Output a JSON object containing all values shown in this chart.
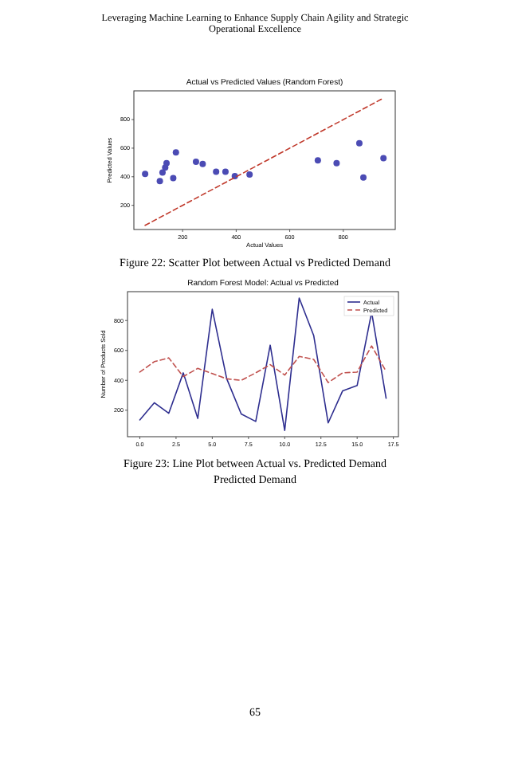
{
  "chart_data": [
    {
      "type": "scatter",
      "title": "Actual vs Predicted Values (Random Forest)",
      "xlabel": "Actual Values",
      "ylabel": "Predicted Values",
      "xlim": [
        18,
        994
      ],
      "ylim": [
        31,
        1001
      ],
      "xticks": [
        200,
        400,
        600,
        800
      ],
      "yticks": [
        200,
        400,
        600,
        800
      ],
      "series": [
        {
          "color": "#4b4bb4",
          "marker": "circle",
          "x": [
            60,
            115,
            125,
            135,
            140,
            175,
            165,
            250,
            275,
            325,
            360,
            395,
            450,
            705,
            775,
            860,
            875,
            950
          ],
          "values": [
            420,
            370,
            430,
            465,
            495,
            570,
            390,
            505,
            490,
            435,
            435,
            405,
            415,
            515,
            495,
            635,
            395,
            530
          ]
        },
        {
          "type": "line",
          "color": "#c0392b",
          "line_style": "dashed",
          "x": [
            60,
            950
          ],
          "values": [
            60,
            950
          ]
        }
      ],
      "annotations": [
        "Leveraging Machine Learning to Enhance Supply Chain Agility and Strategic Operational Excellence",
        "Figure 22: Scatter Plot between Actual vs Predicted Demand"
      ]
    },
    {
      "type": "line",
      "title": "Random Forest Model: Actual vs Predicted",
      "ylabel": "Number of Products Sold",
      "xlim": [
        -0.85,
        17.85
      ],
      "ylim": [
        23,
        993
      ],
      "xticks": [
        {
          "value": 0,
          "label": "0.0"
        },
        {
          "value": 2.5,
          "label": "2.5"
        },
        {
          "value": 5,
          "label": "5.0"
        },
        {
          "value": 7.5,
          "label": "7.5"
        },
        {
          "value": 10,
          "label": "10.0"
        },
        {
          "value": 12.5,
          "label": "12.5"
        },
        {
          "value": 15,
          "label": "15.0"
        },
        {
          "value": 17.5,
          "label": "17.5"
        }
      ],
      "yticks": [
        200,
        400,
        600,
        800
      ],
      "legend": "top right",
      "x": [
        0,
        1,
        2,
        3,
        4,
        5,
        6,
        7,
        8,
        9,
        10,
        11,
        12,
        13,
        14,
        15,
        16,
        17
      ],
      "series": [
        {
          "name": "Actual",
          "color": "#2e2e8f",
          "line_style": "solid",
          "values": [
            135,
            250,
            180,
            450,
            145,
            875,
            410,
            175,
            125,
            635,
            65,
            950,
            700,
            115,
            330,
            365,
            855,
            280
          ]
        },
        {
          "name": "Predicted",
          "color": "#c0504d",
          "line_style": "dashed",
          "values": [
            455,
            525,
            550,
            425,
            480,
            445,
            410,
            400,
            450,
            505,
            435,
            560,
            540,
            385,
            450,
            455,
            630,
            460
          ]
        }
      ],
      "annotations": [
        "Figure 23: Line Plot between Actual vs. Predicted Demand",
        "Predicted Demand",
        "65"
      ]
    }
  ]
}
